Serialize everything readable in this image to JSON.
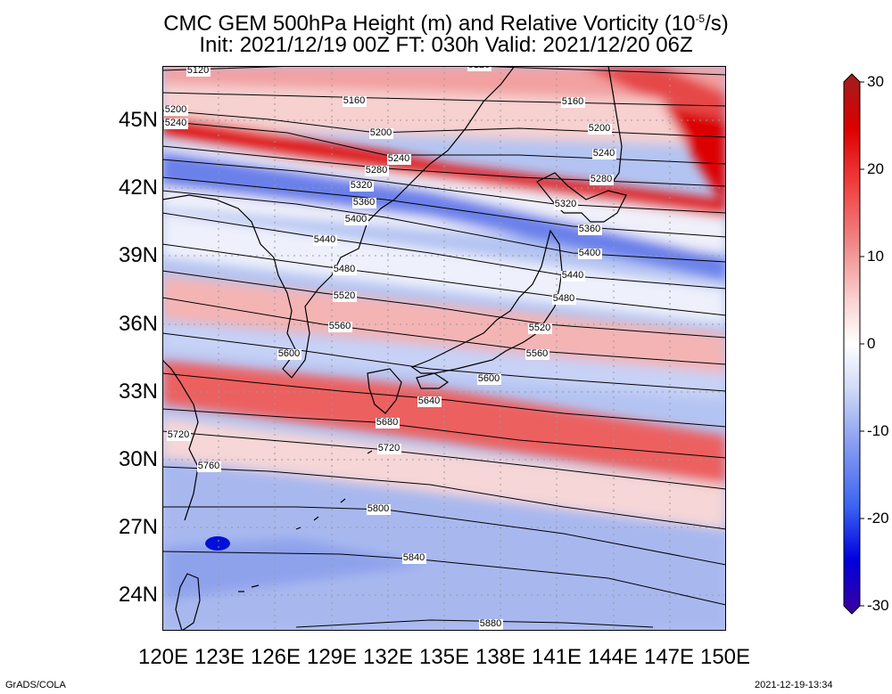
{
  "title": {
    "line1": "CMC GEM 500hPa Height (m) and Relative Vorticity (10",
    "exponent": "-5",
    "line1_end": "/s)",
    "line2": "Init: 2021/12/19 00Z  FT: 030h  Valid: 2021/12/20 06Z"
  },
  "axes": {
    "lat_labels": [
      "45N",
      "42N",
      "39N",
      "36N",
      "33N",
      "30N",
      "27N",
      "24N"
    ],
    "lat_values": [
      45,
      42,
      39,
      36,
      33,
      30,
      27,
      24
    ],
    "lon_labels": [
      "120E",
      "123E",
      "126E",
      "129E",
      "132E",
      "135E",
      "138E",
      "141E",
      "144E",
      "147E",
      "150E"
    ],
    "lon_values": [
      120,
      123,
      126,
      129,
      132,
      135,
      138,
      141,
      144,
      147,
      150
    ],
    "lat_range": [
      22.5,
      47.5
    ],
    "lon_range": [
      120,
      150
    ]
  },
  "contours": {
    "unit": "m",
    "interval": 40,
    "labels": [
      "5120",
      "5160",
      "5200",
      "5240",
      "5280",
      "5320",
      "5360",
      "5400",
      "5440",
      "5480",
      "5520",
      "5560",
      "5600",
      "5640",
      "5680",
      "5720",
      "5760",
      "5800",
      "5840",
      "5880"
    ]
  },
  "colorbar": {
    "ticks": [
      "30",
      "20",
      "10",
      "0",
      "-10",
      "-20",
      "-30"
    ],
    "tick_values": [
      30,
      20,
      10,
      0,
      -10,
      -20,
      -30
    ],
    "range": [
      -30,
      30
    ],
    "colors": [
      "#3c00a0",
      "#0000dc",
      "#3c64f0",
      "#8ca0f0",
      "#d2dcf8",
      "#ffffff",
      "#fad2d2",
      "#f08c8c",
      "#f03c3c",
      "#dc0000",
      "#a01e1e"
    ]
  },
  "footer": {
    "left": "GrADS/COLA",
    "right": "2021-12-19-13:34"
  }
}
